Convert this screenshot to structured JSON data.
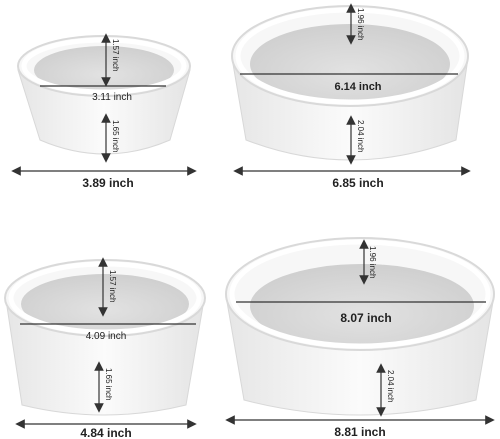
{
  "bowls": [
    {
      "id": "small-bowl",
      "top_height": "1.57 inch",
      "inner_diameter": "3.11 inch",
      "bottom_height": "1.65 inch",
      "outer_width": "3.89 inch"
    },
    {
      "id": "large-shallow-bowl",
      "top_height": "1.96 inch",
      "inner_diameter": "6.14 inch",
      "bottom_height": "2.04 inch",
      "outer_width": "6.85 inch"
    },
    {
      "id": "medium-bowl",
      "top_height": "1.57 inch",
      "inner_diameter": "4.09 inch",
      "bottom_height": "1.65 inch",
      "outer_width": "4.84 inch"
    },
    {
      "id": "extra-large-bowl",
      "top_height": "1.96 inch",
      "inner_diameter": "8.07 inch",
      "bottom_height": "2.04 inch",
      "outer_width": "8.81 inch"
    }
  ],
  "colors": {
    "bowl_fill": "#f3f3f3",
    "bowl_inner": "#dcdcdc",
    "rim": "#fafafa",
    "line": "#333333"
  }
}
